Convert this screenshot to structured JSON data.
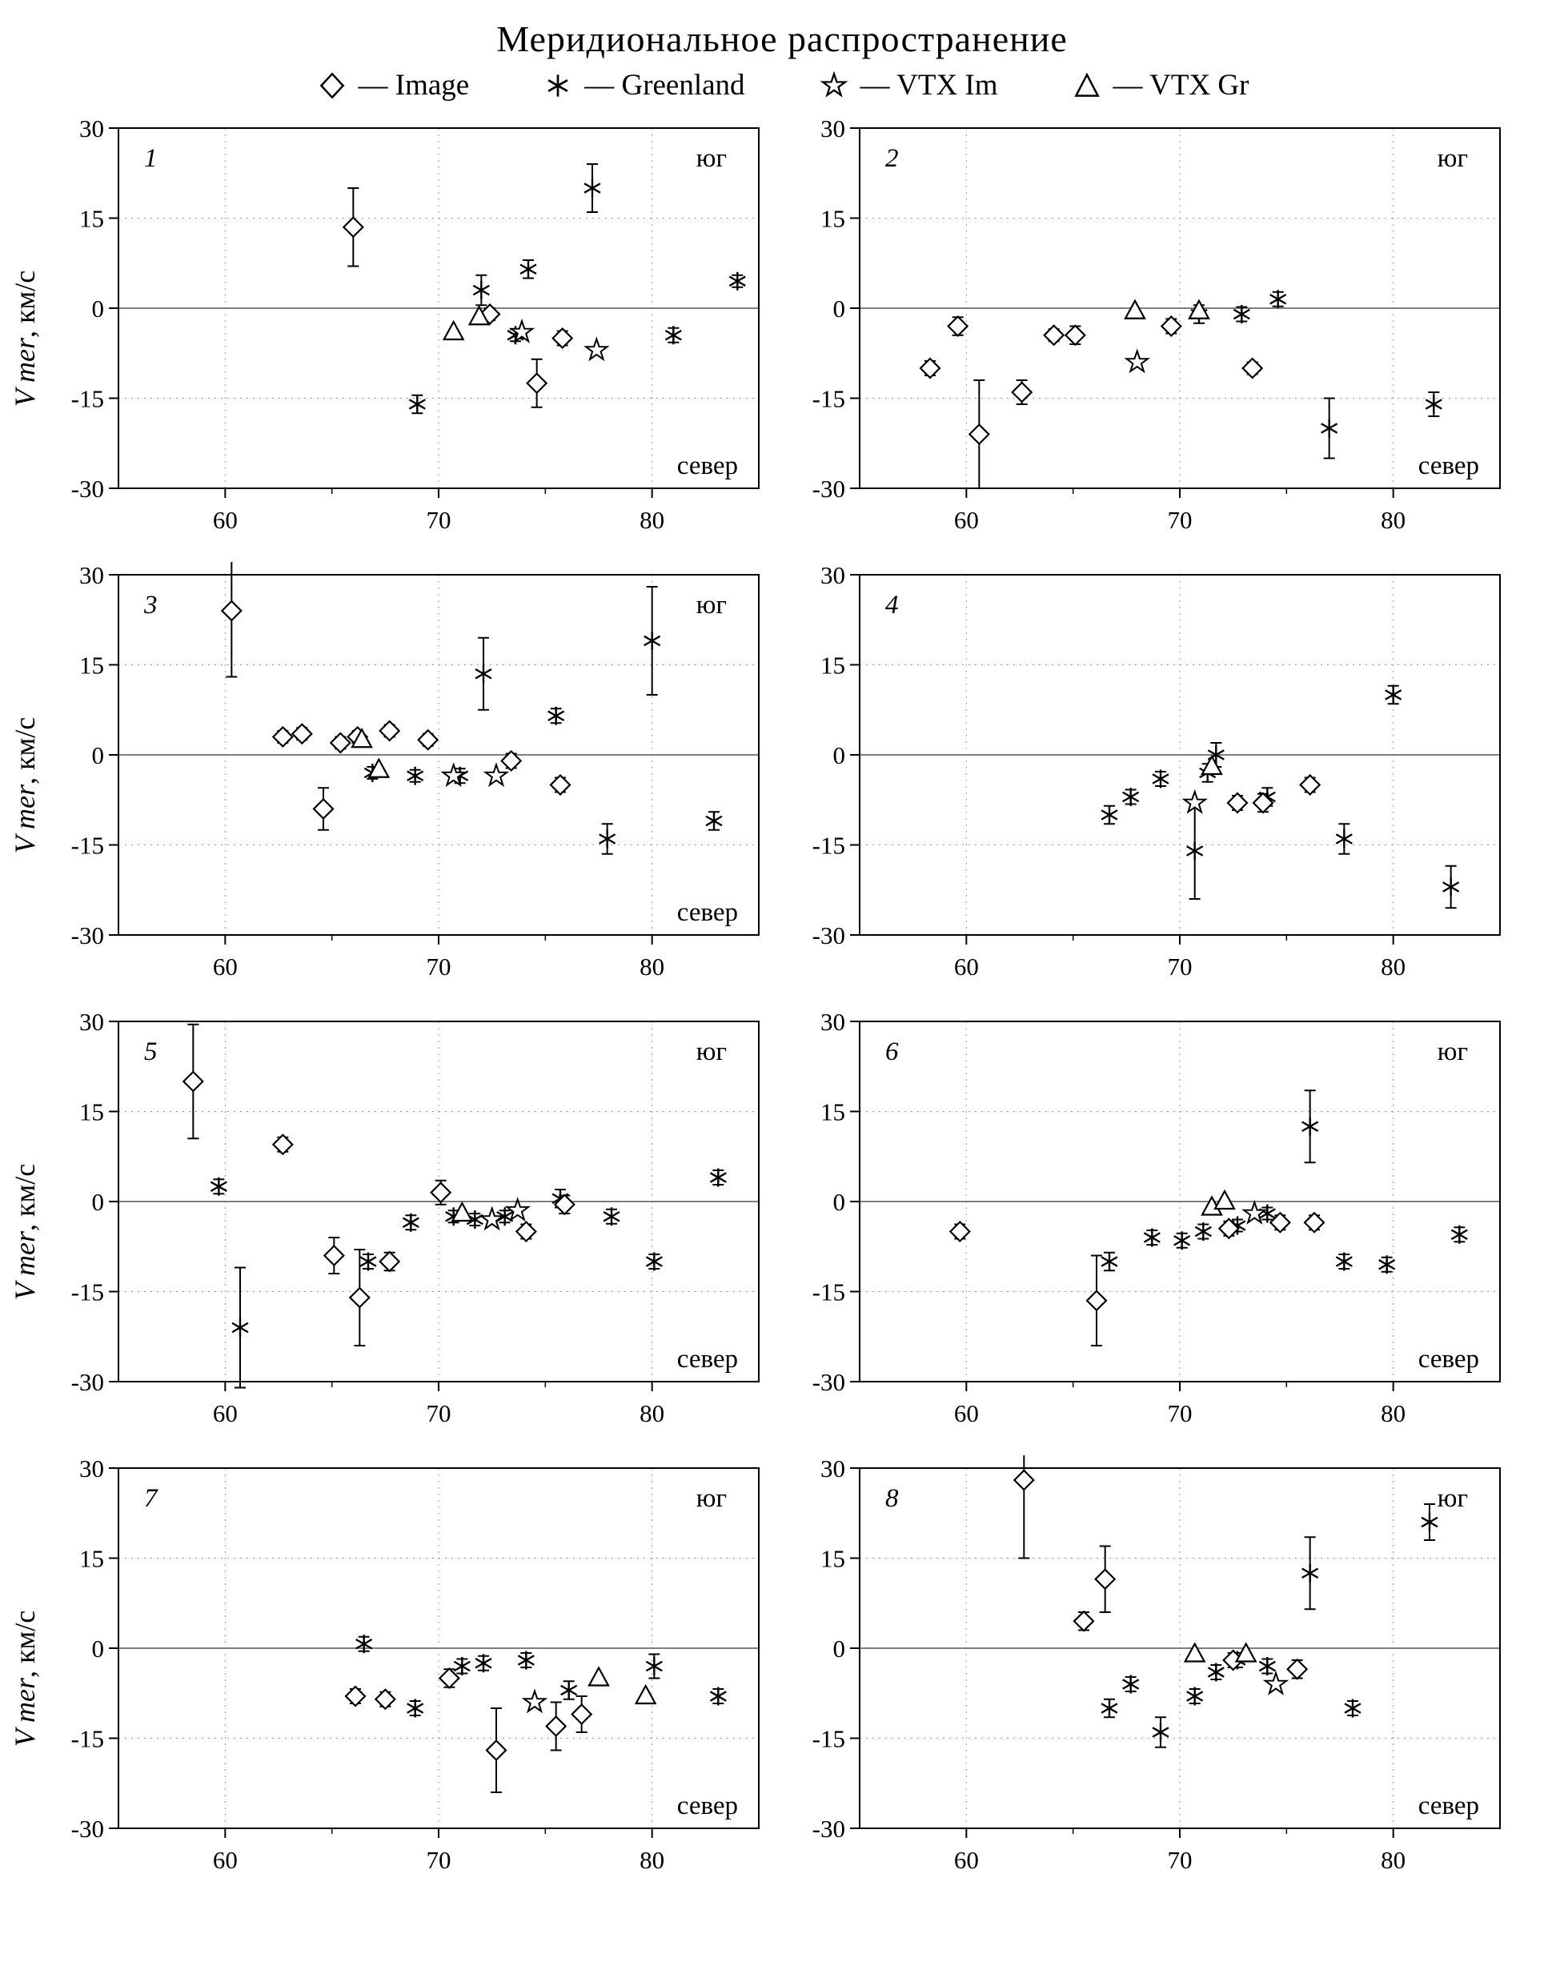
{
  "title": "Меридиональное распространение",
  "ylabel_italic": "V mer",
  "ylabel_rest": ", км/с",
  "legend": [
    {
      "label": "— Image",
      "marker": "diamond"
    },
    {
      "label": "— Greenland",
      "marker": "asterisk"
    },
    {
      "label": "— VTX Im",
      "marker": "star"
    },
    {
      "label": "— VTX Gr",
      "marker": "triangle"
    }
  ],
  "chart_data": [
    {
      "type": "scatter",
      "panel_label": "1",
      "xlim": [
        55,
        85
      ],
      "ylim": [
        -30,
        30
      ],
      "xticks": [
        60,
        70,
        80
      ],
      "yticks": [
        -30,
        -15,
        0,
        15,
        30
      ],
      "annotation_top": "юг",
      "annotation_bottom": "север",
      "series": [
        {
          "name": "Image",
          "marker": "diamond",
          "points": [
            [
              66,
              13.5,
              6.5
            ],
            [
              72.4,
              -1,
              1
            ],
            [
              74.6,
              -12.5,
              4
            ],
            [
              75.8,
              -5,
              1.2
            ]
          ]
        },
        {
          "name": "Greenland",
          "marker": "asterisk",
          "points": [
            [
              69,
              -16,
              1.5
            ],
            [
              72,
              3,
              2.5
            ],
            [
              74.2,
              6.5,
              1.5
            ],
            [
              73.6,
              -4.5,
              1
            ],
            [
              77.2,
              20,
              4
            ],
            [
              81,
              -4.5,
              1.2
            ],
            [
              84,
              4.5,
              1
            ]
          ]
        },
        {
          "name": "VTX Im",
          "marker": "star",
          "points": [
            [
              73.9,
              -4,
              0
            ],
            [
              77.4,
              -7,
              0
            ]
          ]
        },
        {
          "name": "VTX Gr",
          "marker": "triangle",
          "points": [
            [
              70.7,
              -4,
              0
            ],
            [
              71.9,
              -1.5,
              0
            ]
          ]
        }
      ]
    },
    {
      "type": "scatter",
      "panel_label": "2",
      "xlim": [
        55,
        85
      ],
      "ylim": [
        -30,
        30
      ],
      "xticks": [
        60,
        70,
        80
      ],
      "yticks": [
        -30,
        -15,
        0,
        15,
        30
      ],
      "annotation_top": "юг",
      "annotation_bottom": "север",
      "series": [
        {
          "name": "Image",
          "marker": "diamond",
          "points": [
            [
              58.3,
              -10,
              1.2
            ],
            [
              59.6,
              -3,
              1.5
            ],
            [
              60.6,
              -21,
              9
            ],
            [
              62.6,
              -14,
              2
            ],
            [
              64.1,
              -4.5,
              1
            ],
            [
              65.1,
              -4.5,
              1.5
            ],
            [
              69.6,
              -3,
              1.2
            ],
            [
              73.4,
              -10,
              1
            ]
          ]
        },
        {
          "name": "Greenland",
          "marker": "asterisk",
          "points": [
            [
              70.9,
              -1,
              1.5
            ],
            [
              72.9,
              -1,
              1.2
            ],
            [
              74.6,
              1.5,
              1.2
            ],
            [
              77,
              -20,
              5
            ],
            [
              81.9,
              -16,
              2
            ]
          ]
        },
        {
          "name": "VTX Im",
          "marker": "star",
          "points": [
            [
              68,
              -9,
              0
            ]
          ]
        },
        {
          "name": "VTX Gr",
          "marker": "triangle",
          "points": [
            [
              67.9,
              -0.5,
              0
            ],
            [
              70.9,
              -0.5,
              0
            ]
          ]
        }
      ]
    },
    {
      "type": "scatter",
      "panel_label": "3",
      "xlim": [
        55,
        85
      ],
      "ylim": [
        -30,
        30
      ],
      "xticks": [
        60,
        70,
        80
      ],
      "yticks": [
        -30,
        -15,
        0,
        15,
        30
      ],
      "annotation_top": "юг",
      "annotation_bottom": "север",
      "series": [
        {
          "name": "Image",
          "marker": "diamond",
          "points": [
            [
              60.3,
              24,
              11
            ],
            [
              62.7,
              3,
              1
            ],
            [
              63.6,
              3.5,
              1
            ],
            [
              64.6,
              -9,
              3.5
            ],
            [
              65.4,
              2,
              1
            ],
            [
              66.2,
              3,
              1
            ],
            [
              67.7,
              4,
              1
            ],
            [
              69.5,
              2.5,
              1
            ],
            [
              73.4,
              -1,
              1.2
            ],
            [
              75.7,
              -5,
              1.2
            ]
          ]
        },
        {
          "name": "Greenland",
          "marker": "asterisk",
          "points": [
            [
              66.9,
              -3,
              1
            ],
            [
              68.9,
              -3.5,
              1
            ],
            [
              71,
              -3.5,
              1.2
            ],
            [
              72.1,
              13.5,
              6
            ],
            [
              75.5,
              6.5,
              1.2
            ],
            [
              77.9,
              -14,
              2.5
            ],
            [
              80,
              19,
              9
            ],
            [
              82.9,
              -11,
              1.5
            ]
          ]
        },
        {
          "name": "VTX Im",
          "marker": "star",
          "points": [
            [
              70.7,
              -3.5,
              0
            ],
            [
              72.7,
              -3.5,
              0
            ]
          ]
        },
        {
          "name": "VTX Gr",
          "marker": "triangle",
          "points": [
            [
              66.4,
              2.5,
              0
            ],
            [
              67.2,
              -2.5,
              0
            ]
          ]
        }
      ]
    },
    {
      "type": "scatter",
      "panel_label": "4",
      "xlim": [
        55,
        85
      ],
      "ylim": [
        -30,
        30
      ],
      "xticks": [
        60,
        70,
        80
      ],
      "yticks": [
        -30,
        -15,
        0,
        15,
        30
      ],
      "annotation_top": "",
      "annotation_bottom": "",
      "series": [
        {
          "name": "Image",
          "marker": "diamond",
          "points": [
            [
              72.7,
              -8,
              1.2
            ],
            [
              73.9,
              -8,
              1.5
            ],
            [
              76.1,
              -5,
              1.2
            ]
          ]
        },
        {
          "name": "Greenland",
          "marker": "asterisk",
          "points": [
            [
              66.7,
              -10,
              1.5
            ],
            [
              67.7,
              -7,
              1.2
            ],
            [
              69.1,
              -4,
              1.2
            ],
            [
              70.7,
              -16,
              8
            ],
            [
              71.3,
              -3,
              1.5
            ],
            [
              71.7,
              0,
              2
            ],
            [
              74.1,
              -7,
              1.5
            ],
            [
              77.7,
              -14,
              2.5
            ],
            [
              80,
              10,
              1.5
            ],
            [
              82.7,
              -22,
              3.5
            ]
          ]
        },
        {
          "name": "VTX Im",
          "marker": "star",
          "points": [
            [
              70.7,
              -8,
              0
            ]
          ]
        },
        {
          "name": "VTX Gr",
          "marker": "triangle",
          "points": [
            [
              71.5,
              -2,
              0
            ]
          ]
        }
      ]
    },
    {
      "type": "scatter",
      "panel_label": "5",
      "xlim": [
        55,
        85
      ],
      "ylim": [
        -30,
        30
      ],
      "xticks": [
        60,
        70,
        80
      ],
      "yticks": [
        -30,
        -15,
        0,
        15,
        30
      ],
      "annotation_top": "юг",
      "annotation_bottom": "север",
      "series": [
        {
          "name": "Image",
          "marker": "diamond",
          "points": [
            [
              58.5,
              20,
              9.5
            ],
            [
              62.7,
              9.5,
              1.2
            ],
            [
              65.1,
              -9,
              3
            ],
            [
              66.3,
              -16,
              8
            ],
            [
              67.7,
              -10,
              1.5
            ],
            [
              70.1,
              1.5,
              2
            ],
            [
              74.1,
              -5,
              1.2
            ],
            [
              75.9,
              -0.5,
              1.5
            ]
          ]
        },
        {
          "name": "Greenland",
          "marker": "asterisk",
          "points": [
            [
              59.7,
              2.5,
              1.2
            ],
            [
              60.7,
              -21,
              10
            ],
            [
              66.7,
              -10,
              1.2
            ],
            [
              68.7,
              -3.5,
              1.2
            ],
            [
              70.7,
              -2.5,
              1
            ],
            [
              71.7,
              -3,
              1
            ],
            [
              73.1,
              -2.5,
              1
            ],
            [
              75.7,
              0.5,
              1.5
            ],
            [
              78.1,
              -2.5,
              1.2
            ],
            [
              80.1,
              -10,
              1.2
            ],
            [
              83.1,
              4,
              1.2
            ]
          ]
        },
        {
          "name": "VTX Im",
          "marker": "star",
          "points": [
            [
              72.5,
              -3,
              0
            ],
            [
              73.7,
              -1.5,
              0
            ]
          ]
        },
        {
          "name": "VTX Gr",
          "marker": "triangle",
          "points": [
            [
              71.1,
              -2,
              0
            ]
          ]
        }
      ]
    },
    {
      "type": "scatter",
      "panel_label": "6",
      "xlim": [
        55,
        85
      ],
      "ylim": [
        -30,
        30
      ],
      "xticks": [
        60,
        70,
        80
      ],
      "yticks": [
        -30,
        -15,
        0,
        15,
        30
      ],
      "annotation_top": "юг",
      "annotation_bottom": "север",
      "series": [
        {
          "name": "Image",
          "marker": "diamond",
          "points": [
            [
              59.7,
              -5,
              1.2
            ],
            [
              66.1,
              -16.5,
              7.5
            ],
            [
              72.3,
              -4.5,
              1.2
            ],
            [
              74.7,
              -3.5,
              1.2
            ],
            [
              76.3,
              -3.5,
              1.2
            ]
          ]
        },
        {
          "name": "Greenland",
          "marker": "asterisk",
          "points": [
            [
              66.7,
              -10,
              1.5
            ],
            [
              68.7,
              -6,
              1.2
            ],
            [
              70.1,
              -6.5,
              1.2
            ],
            [
              71.1,
              -5,
              1.2
            ],
            [
              72.7,
              -4,
              1
            ],
            [
              74.1,
              -2,
              1
            ],
            [
              76.1,
              12.5,
              6
            ],
            [
              77.7,
              -10,
              1.2
            ],
            [
              79.7,
              -10.5,
              1.2
            ],
            [
              83.1,
              -5.5,
              1.2
            ]
          ]
        },
        {
          "name": "VTX Im",
          "marker": "star",
          "points": [
            [
              73.5,
              -2,
              0
            ]
          ]
        },
        {
          "name": "VTX Gr",
          "marker": "triangle",
          "points": [
            [
              71.5,
              -1,
              0
            ],
            [
              72.1,
              0,
              0
            ]
          ]
        }
      ]
    },
    {
      "type": "scatter",
      "panel_label": "7",
      "xlim": [
        55,
        85
      ],
      "ylim": [
        -30,
        30
      ],
      "xticks": [
        60,
        70,
        80
      ],
      "yticks": [
        -30,
        -15,
        0,
        15,
        30
      ],
      "annotation_top": "юг",
      "annotation_bottom": "север",
      "series": [
        {
          "name": "Image",
          "marker": "diamond",
          "points": [
            [
              66.1,
              -8,
              1.2
            ],
            [
              67.5,
              -8.5,
              1.2
            ],
            [
              70.5,
              -5,
              1.5
            ],
            [
              72.7,
              -17,
              7
            ],
            [
              75.5,
              -13,
              4
            ],
            [
              76.7,
              -11,
              3
            ]
          ]
        },
        {
          "name": "Greenland",
          "marker": "asterisk",
          "points": [
            [
              66.5,
              0.7,
              1.2
            ],
            [
              68.9,
              -10,
              1.2
            ],
            [
              71.1,
              -3,
              1.2
            ],
            [
              72.1,
              -2.5,
              1.2
            ],
            [
              74.1,
              -2,
              1.2
            ],
            [
              76.1,
              -7,
              1.5
            ],
            [
              80.1,
              -3,
              2
            ],
            [
              83.1,
              -8,
              1.2
            ]
          ]
        },
        {
          "name": "VTX Im",
          "marker": "star",
          "points": [
            [
              74.5,
              -9,
              0
            ]
          ]
        },
        {
          "name": "VTX Gr",
          "marker": "triangle",
          "points": [
            [
              77.5,
              -5,
              0
            ],
            [
              79.7,
              -8,
              0
            ]
          ]
        }
      ]
    },
    {
      "type": "scatter",
      "panel_label": "8",
      "xlim": [
        55,
        85
      ],
      "ylim": [
        -30,
        30
      ],
      "xticks": [
        60,
        70,
        80
      ],
      "yticks": [
        -30,
        -15,
        0,
        15,
        30
      ],
      "annotation_top": "юг",
      "annotation_bottom": "север",
      "series": [
        {
          "name": "Image",
          "marker": "diamond",
          "points": [
            [
              62.7,
              28,
              13
            ],
            [
              65.5,
              4.5,
              1.5
            ],
            [
              66.5,
              11.5,
              5.5
            ],
            [
              72.5,
              -2,
              1.2
            ],
            [
              75.5,
              -3.5,
              1.5
            ]
          ]
        },
        {
          "name": "Greenland",
          "marker": "asterisk",
          "points": [
            [
              66.7,
              -10,
              1.5
            ],
            [
              67.7,
              -6,
              1.2
            ],
            [
              69.1,
              -14,
              2.5
            ],
            [
              70.7,
              -8,
              1.2
            ],
            [
              71.7,
              -4,
              1.2
            ],
            [
              72.7,
              -2,
              1.2
            ],
            [
              74.1,
              -3,
              1.2
            ],
            [
              76.1,
              12.5,
              6
            ],
            [
              78.1,
              -10,
              1.2
            ],
            [
              81.7,
              21,
              3
            ]
          ]
        },
        {
          "name": "VTX Im",
          "marker": "star",
          "points": [
            [
              74.5,
              -6,
              0
            ]
          ]
        },
        {
          "name": "VTX Gr",
          "marker": "triangle",
          "points": [
            [
              70.7,
              -1,
              0
            ],
            [
              73.1,
              -1,
              0
            ]
          ]
        }
      ]
    }
  ]
}
